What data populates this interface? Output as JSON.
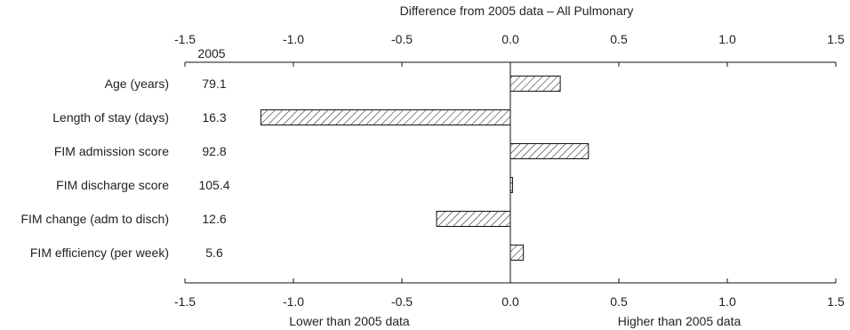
{
  "chart_data": {
    "type": "bar",
    "orientation": "horizontal",
    "title": "Difference from 2005 data – All Pulmonary",
    "baseline_header": "2005",
    "categories": [
      "Age (years)",
      "Length of stay (days)",
      "FIM admission score",
      "FIM discharge score",
      "FIM change (adm to disch)",
      "FIM efficiency (per week)"
    ],
    "baseline_values": [
      "79.1",
      "16.3",
      "92.8",
      "105.4",
      "12.6",
      "5.6"
    ],
    "values": [
      0.23,
      -1.15,
      0.36,
      0.01,
      -0.34,
      0.06
    ],
    "xlim": [
      -1.5,
      1.5
    ],
    "ticks": [
      "-1.5",
      "-1.0",
      "-0.5",
      "0.0",
      "0.5",
      "1.0",
      "1.5"
    ],
    "tick_values": [
      -1.5,
      -1.0,
      -0.5,
      0.0,
      0.5,
      1.0,
      1.5
    ],
    "lower_label": "Lower than 2005 data",
    "higher_label": "Higher than 2005 data",
    "bar_pattern": "diagonal-hatch",
    "grid": false,
    "legend": "none"
  }
}
